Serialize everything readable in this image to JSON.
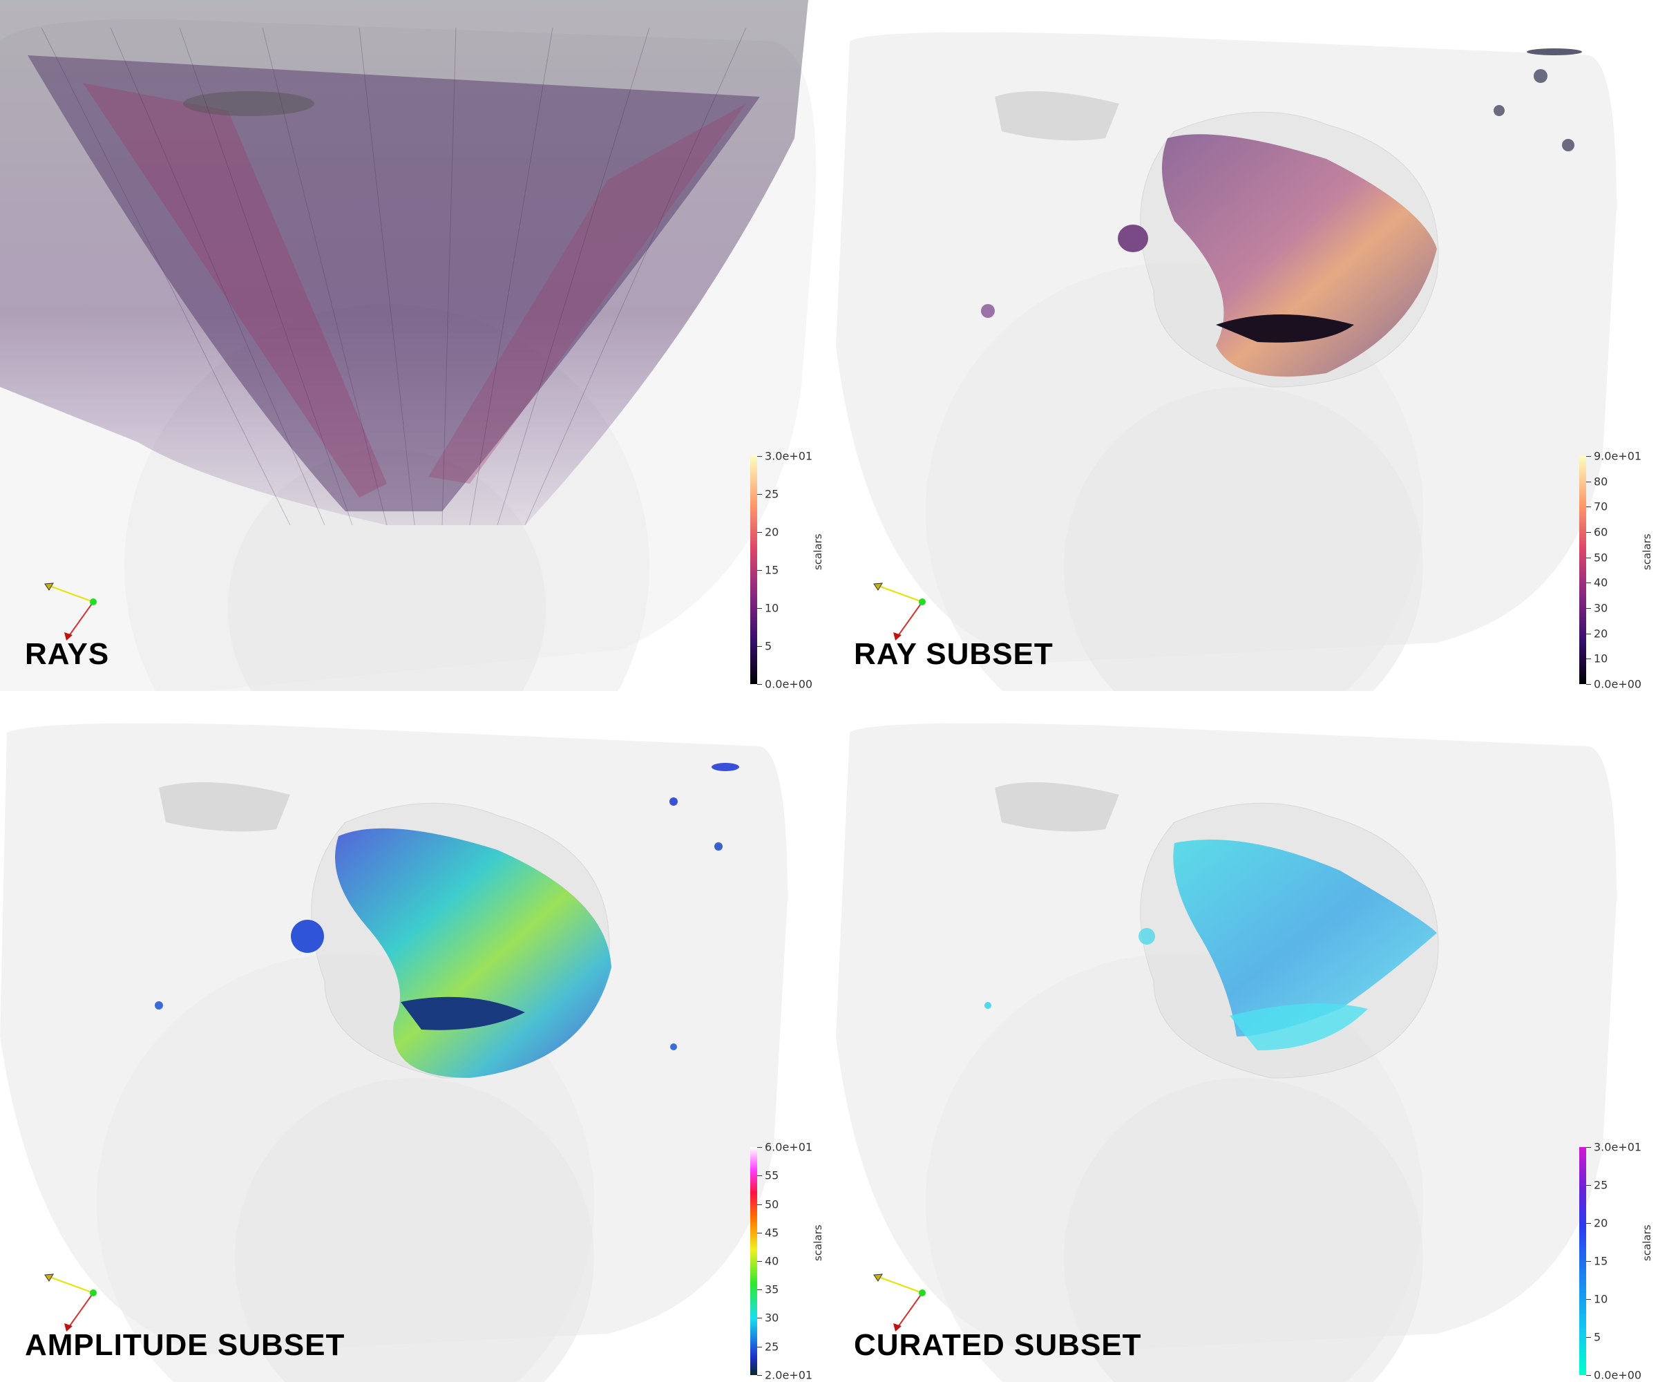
{
  "panels": [
    {
      "id": "rays",
      "title": "RAYS",
      "colorbar": {
        "title": "scalars",
        "max_label": "3.0e+01",
        "min_label": "0.0e+00",
        "ticks": [
          "25",
          "20",
          "15",
          "10",
          "5"
        ],
        "range": [
          0,
          30
        ],
        "tick_values": [
          25,
          20,
          15,
          10,
          5
        ],
        "colormap": "inferno",
        "colors": [
          "#000004",
          "#3b0f70",
          "#8c2981",
          "#de4968",
          "#fe9f6d",
          "#fcfdbf"
        ]
      }
    },
    {
      "id": "ray-subset",
      "title": "RAY SUBSET",
      "colorbar": {
        "title": "scalars",
        "max_label": "9.0e+01",
        "min_label": "0.0e+00",
        "ticks": [
          "80",
          "70",
          "60",
          "50",
          "40",
          "30",
          "20",
          "10"
        ],
        "range": [
          0,
          90
        ],
        "tick_values": [
          80,
          70,
          60,
          50,
          40,
          30,
          20,
          10
        ],
        "colormap": "inferno",
        "colors": [
          "#000004",
          "#3b0f70",
          "#8c2981",
          "#de4968",
          "#fe9f6d",
          "#fcfdbf"
        ]
      }
    },
    {
      "id": "amplitude-subset",
      "title": "AMPLITUDE SUBSET",
      "colorbar": {
        "title": "scalars",
        "max_label": "6.0e+01",
        "min_label": "2.0e+01",
        "ticks": [
          "55",
          "50",
          "45",
          "40",
          "35",
          "30",
          "25"
        ],
        "range": [
          20,
          60
        ],
        "tick_values": [
          55,
          50,
          45,
          40,
          35,
          30,
          25
        ],
        "colormap": "rainbow",
        "colors": [
          "#0a2a2a",
          "#1f2fd0",
          "#16e0f0",
          "#2ee82e",
          "#f0f020",
          "#ff7a00",
          "#ff1040",
          "#ff40ff",
          "#ffffff"
        ]
      }
    },
    {
      "id": "curated-subset",
      "title": "CURATED SUBSET",
      "colorbar": {
        "title": "scalars",
        "max_label": "3.0e+01",
        "min_label": "0.0e+00",
        "ticks": [
          "25",
          "20",
          "15",
          "10",
          "5"
        ],
        "range": [
          0,
          30
        ],
        "tick_values": [
          25,
          20,
          15,
          10,
          5
        ],
        "colormap": "cool",
        "colors": [
          "#00ffcc",
          "#12c8f0",
          "#1a7ff0",
          "#2a3cf0",
          "#6a22d8",
          "#d21ad2"
        ]
      }
    }
  ]
}
